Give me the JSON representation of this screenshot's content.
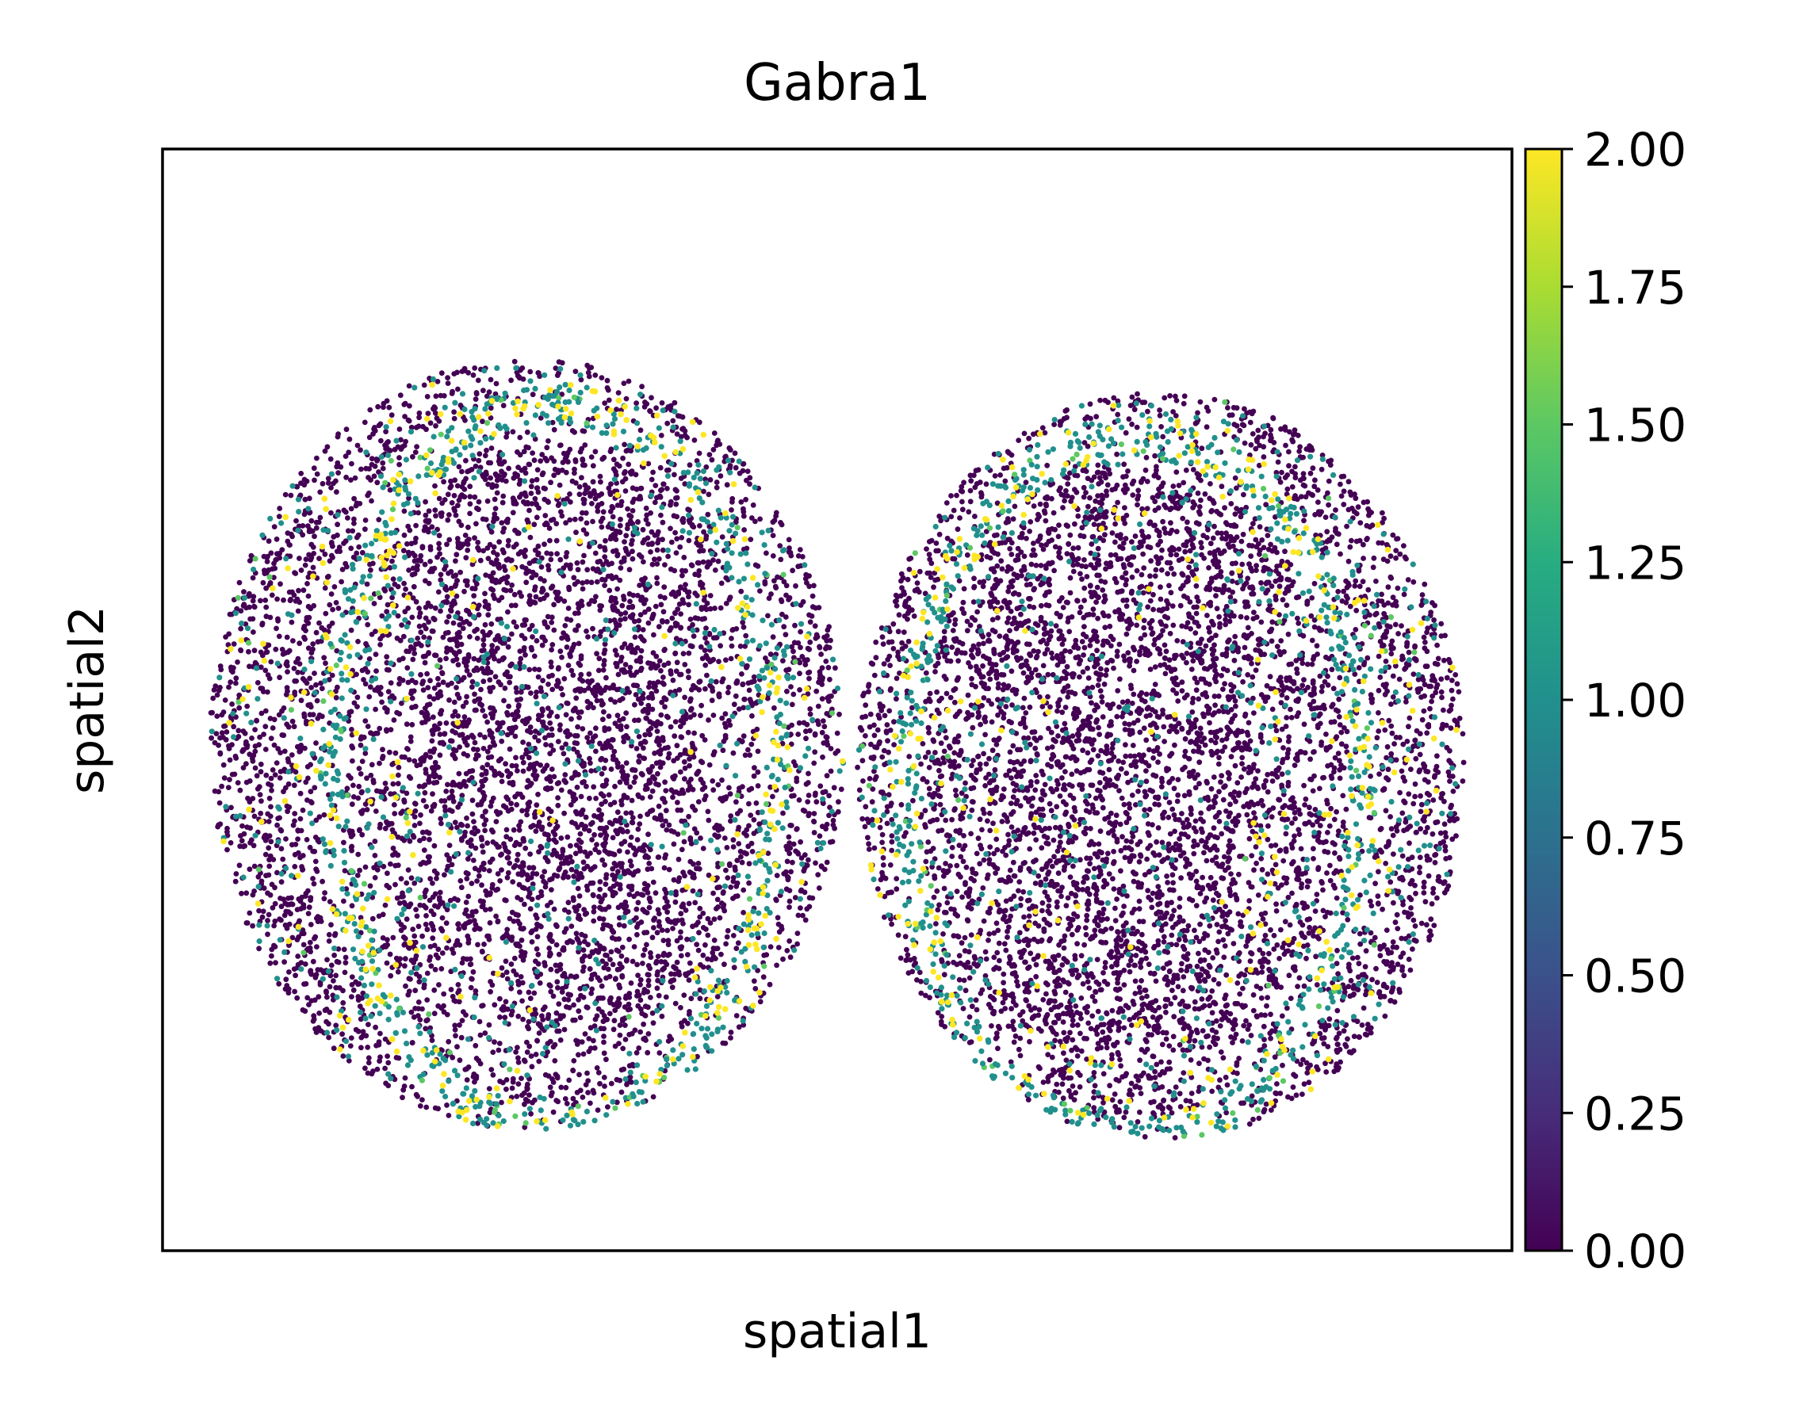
{
  "chart_data": {
    "type": "scatter",
    "title": "Gabra1",
    "xlabel": "spatial1",
    "ylabel": "spatial2",
    "x_ticks_shown": false,
    "y_ticks_shown": false,
    "grid": false,
    "colormap": "viridis",
    "colorbar": {
      "position": "right",
      "range": [
        0.0,
        2.0
      ],
      "ticks": [
        0.0,
        0.25,
        0.5,
        0.75,
        1.0,
        1.25,
        1.5,
        1.75,
        2.0
      ],
      "tick_labels": [
        "0.00",
        "0.25",
        "0.50",
        "0.75",
        "1.00",
        "1.25",
        "1.50",
        "1.75",
        "2.00"
      ],
      "colors": [
        "#440154",
        "#472c7a",
        "#3b518b",
        "#2c718e",
        "#21908d",
        "#27ad81",
        "#5cc863",
        "#aadc32",
        "#fde725"
      ]
    },
    "sections": [
      {
        "id": "left-section",
        "center": [
          0.27,
          0.54
        ],
        "radius": [
          0.235,
          0.35
        ],
        "core_regions": [
          {
            "center": [
              0.29,
              0.38
            ],
            "radius": [
              0.11,
              0.11
            ]
          },
          {
            "center": [
              0.3,
              0.54
            ],
            "radius": [
              0.12,
              0.1
            ]
          },
          {
            "center": [
              0.3,
              0.7
            ],
            "radius": [
              0.09,
              0.1
            ]
          }
        ],
        "ring": {
          "center": [
            0.29,
            0.56
          ],
          "radius": [
            0.165,
            0.33
          ]
        }
      },
      {
        "id": "right-section",
        "center": [
          0.74,
          0.56
        ],
        "radius": [
          0.225,
          0.34
        ],
        "core_regions": [
          {
            "center": [
              0.7,
              0.41
            ],
            "radius": [
              0.12,
              0.12
            ]
          },
          {
            "center": [
              0.72,
              0.58
            ],
            "radius": [
              0.1,
              0.1
            ]
          },
          {
            "center": [
              0.7,
              0.72
            ],
            "radius": [
              0.09,
              0.1
            ]
          }
        ],
        "ring": {
          "center": [
            0.72,
            0.58
          ],
          "radius": [
            0.17,
            0.32
          ]
        }
      }
    ],
    "expression_value_range": [
      0,
      2
    ],
    "point_count_approx": 14000
  }
}
